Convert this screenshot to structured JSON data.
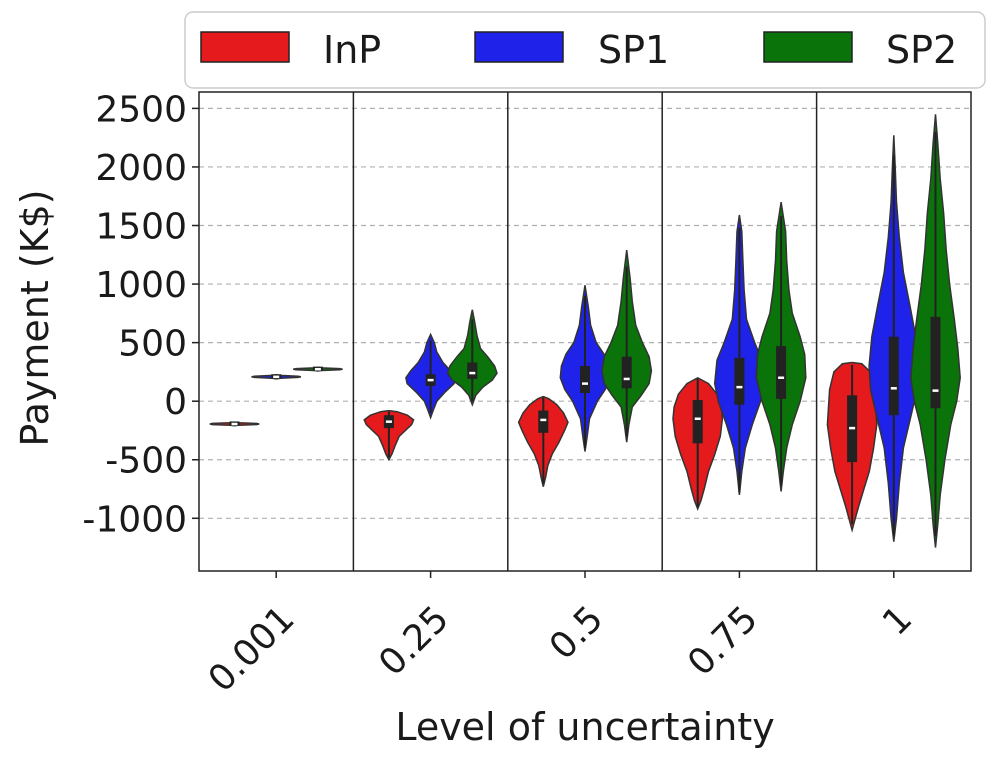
{
  "chart_data": {
    "type": "violin",
    "xlabel": "Level of uncertainty",
    "ylabel": "Payment (K$)",
    "ylim": [
      -1450,
      2640
    ],
    "yticks": [
      -1000,
      -500,
      0,
      500,
      1000,
      1500,
      2000,
      2500
    ],
    "ytick_labels": [
      "-1000",
      "-500",
      "0",
      "500",
      "1000",
      "1500",
      "2000",
      "2500"
    ],
    "grid": "horizontal dashed",
    "legend_position": "top",
    "categories": [
      "0.001",
      "0.25",
      "0.5",
      "0.75",
      "1"
    ],
    "series": [
      {
        "name": "InP",
        "color": "#e41a1c",
        "stats": [
          {
            "min": -205,
            "q1": -200,
            "median": -195,
            "q3": -190,
            "max": -185,
            "density": [
              [
                -210,
                0
              ],
              [
                -205,
                3
              ],
              [
                -200,
                16
              ],
              [
                -195,
                18
              ],
              [
                -190,
                16
              ],
              [
                -185,
                3
              ],
              [
                -180,
                0
              ]
            ]
          },
          {
            "min": -480,
            "q1": -230,
            "median": -175,
            "q3": -120,
            "max": -90,
            "density": [
              [
                -500,
                0
              ],
              [
                -450,
                3
              ],
              [
                -380,
                6
              ],
              [
                -300,
                10
              ],
              [
                -250,
                16
              ],
              [
                -200,
                22
              ],
              [
                -160,
                24
              ],
              [
                -120,
                18
              ],
              [
                -90,
                8
              ],
              [
                -80,
                0
              ]
            ]
          },
          {
            "min": -700,
            "q1": -270,
            "median": -160,
            "q3": -80,
            "max": 30,
            "density": [
              [
                -730,
                0
              ],
              [
                -650,
                2
              ],
              [
                -550,
                4
              ],
              [
                -450,
                8
              ],
              [
                -350,
                14
              ],
              [
                -250,
                19
              ],
              [
                -180,
                22
              ],
              [
                -100,
                18
              ],
              [
                -30,
                12
              ],
              [
                20,
                5
              ],
              [
                40,
                0
              ]
            ]
          },
          {
            "min": -900,
            "q1": -360,
            "median": -150,
            "q3": 10,
            "max": 190,
            "density": [
              [
                -920,
                0
              ],
              [
                -850,
                3
              ],
              [
                -750,
                6
              ],
              [
                -600,
                10
              ],
              [
                -450,
                16
              ],
              [
                -300,
                21
              ],
              [
                -150,
                23
              ],
              [
                -50,
                22
              ],
              [
                60,
                18
              ],
              [
                150,
                10
              ],
              [
                200,
                0
              ]
            ]
          },
          {
            "min": -1050,
            "q1": -520,
            "median": -230,
            "q3": 50,
            "max": 310,
            "density": [
              [
                -1100,
                0
              ],
              [
                -1000,
                3
              ],
              [
                -900,
                6
              ],
              [
                -750,
                11
              ],
              [
                -600,
                16
              ],
              [
                -400,
                20
              ],
              [
                -200,
                23
              ],
              [
                -50,
                22
              ],
              [
                100,
                21
              ],
              [
                250,
                17
              ],
              [
                320,
                9
              ],
              [
                330,
                0
              ]
            ]
          }
        ]
      },
      {
        "name": "SP1",
        "color": "#1f22e8",
        "stats": [
          {
            "min": 195,
            "q1": 203,
            "median": 208,
            "q3": 213,
            "max": 222,
            "density": [
              [
                190,
                0
              ],
              [
                195,
                3
              ],
              [
                203,
                16
              ],
              [
                208,
                18
              ],
              [
                213,
                16
              ],
              [
                220,
                3
              ],
              [
                225,
                0
              ]
            ]
          },
          {
            "min": -100,
            "q1": 130,
            "median": 180,
            "q3": 230,
            "max": 520,
            "density": [
              [
                -140,
                0
              ],
              [
                -80,
                2
              ],
              [
                0,
                5
              ],
              [
                80,
                12
              ],
              [
                150,
                19
              ],
              [
                200,
                20
              ],
              [
                260,
                16
              ],
              [
                330,
                10
              ],
              [
                420,
                5
              ],
              [
                500,
                3
              ],
              [
                570,
                0
              ]
            ]
          },
          {
            "min": -400,
            "q1": 70,
            "median": 150,
            "q3": 300,
            "max": 900,
            "density": [
              [
                -430,
                0
              ],
              [
                -300,
                2
              ],
              [
                -150,
                4
              ],
              [
                0,
                11
              ],
              [
                100,
                18
              ],
              [
                200,
                22
              ],
              [
                300,
                21
              ],
              [
                400,
                17
              ],
              [
                500,
                10
              ],
              [
                650,
                5
              ],
              [
                800,
                3
              ],
              [
                990,
                0
              ]
            ]
          },
          {
            "min": -780,
            "q1": -30,
            "median": 120,
            "q3": 370,
            "max": 1480,
            "density": [
              [
                -800,
                0
              ],
              [
                -600,
                2
              ],
              [
                -400,
                5
              ],
              [
                -200,
                11
              ],
              [
                0,
                18
              ],
              [
                150,
                21
              ],
              [
                350,
                19
              ],
              [
                500,
                13
              ],
              [
                700,
                6
              ],
              [
                950,
                4
              ],
              [
                1200,
                3
              ],
              [
                1450,
                2
              ],
              [
                1590,
                0
              ]
            ]
          },
          {
            "min": -1150,
            "q1": -120,
            "median": 110,
            "q3": 550,
            "max": 2100,
            "density": [
              [
                -1200,
                0
              ],
              [
                -1000,
                2
              ],
              [
                -700,
                4
              ],
              [
                -400,
                7
              ],
              [
                -150,
                12
              ],
              [
                100,
                17
              ],
              [
                300,
                18
              ],
              [
                550,
                16
              ],
              [
                800,
                12
              ],
              [
                1100,
                7
              ],
              [
                1400,
                4
              ],
              [
                1700,
                2
              ],
              [
                2000,
                1
              ],
              [
                2270,
                0
              ]
            ]
          }
        ]
      },
      {
        "name": "SP2",
        "color": "#0a730a",
        "stats": [
          {
            "min": 262,
            "q1": 268,
            "median": 273,
            "q3": 278,
            "max": 285,
            "density": [
              [
                258,
                0
              ],
              [
                262,
                3
              ],
              [
                268,
                16
              ],
              [
                273,
                18
              ],
              [
                278,
                16
              ],
              [
                284,
                3
              ],
              [
                288,
                0
              ]
            ]
          },
          {
            "min": 0,
            "q1": 190,
            "median": 240,
            "q3": 330,
            "max": 700,
            "density": [
              [
                -30,
                0
              ],
              [
                50,
                3
              ],
              [
                120,
                9
              ],
              [
                180,
                17
              ],
              [
                240,
                21
              ],
              [
                300,
                19
              ],
              [
                380,
                13
              ],
              [
                450,
                7
              ],
              [
                560,
                4
              ],
              [
                680,
                2
              ],
              [
                780,
                0
              ]
            ]
          },
          {
            "min": -300,
            "q1": 110,
            "median": 190,
            "q3": 380,
            "max": 1150,
            "density": [
              [
                -350,
                0
              ],
              [
                -200,
                2
              ],
              [
                -50,
                5
              ],
              [
                50,
                13
              ],
              [
                150,
                20
              ],
              [
                260,
                22
              ],
              [
                380,
                20
              ],
              [
                500,
                14
              ],
              [
                650,
                8
              ],
              [
                850,
                5
              ],
              [
                1050,
                3
              ],
              [
                1290,
                0
              ]
            ]
          },
          {
            "min": -720,
            "q1": 20,
            "median": 200,
            "q3": 470,
            "max": 1580,
            "density": [
              [
                -770,
                0
              ],
              [
                -600,
                2
              ],
              [
                -400,
                5
              ],
              [
                -200,
                10
              ],
              [
                0,
                17
              ],
              [
                200,
                22
              ],
              [
                400,
                21
              ],
              [
                550,
                17
              ],
              [
                750,
                10
              ],
              [
                950,
                7
              ],
              [
                1200,
                5
              ],
              [
                1450,
                4
              ],
              [
                1700,
                0
              ]
            ]
          },
          {
            "min": -1150,
            "q1": -60,
            "median": 90,
            "q3": 720,
            "max": 2300,
            "density": [
              [
                -1250,
                0
              ],
              [
                -1050,
                2
              ],
              [
                -800,
                4
              ],
              [
                -500,
                8
              ],
              [
                -200,
                13
              ],
              [
                0,
                18
              ],
              [
                200,
                21
              ],
              [
                450,
                19
              ],
              [
                700,
                16
              ],
              [
                1000,
                12
              ],
              [
                1300,
                9
              ],
              [
                1600,
                7
              ],
              [
                1900,
                4
              ],
              [
                2200,
                2
              ],
              [
                2450,
                0
              ]
            ]
          }
        ]
      }
    ]
  }
}
